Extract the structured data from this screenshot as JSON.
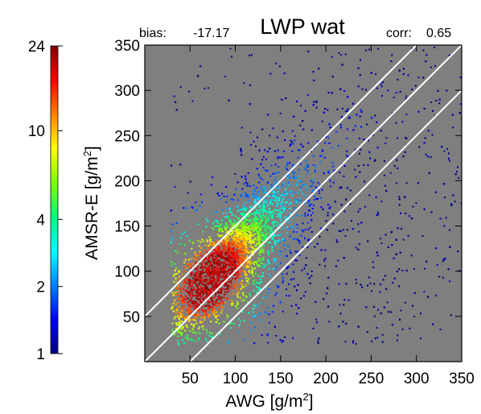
{
  "chart_data": {
    "type": "heatmap",
    "title": "LWP wat",
    "stats": {
      "bias_label": "bias:",
      "bias_value": "-17.17",
      "corr_label": "corr:",
      "corr_value": "0.65"
    },
    "xlabel": {
      "base": "AWG [g/m",
      "sup": "2",
      "end": "]"
    },
    "ylabel": {
      "base": "AMSR-E [g/m",
      "sup": "2",
      "end": "]"
    },
    "xlim": [
      0,
      350
    ],
    "ylim": [
      0,
      350
    ],
    "xticks": [
      50,
      100,
      150,
      200,
      250,
      300,
      350
    ],
    "yticks": [
      50,
      100,
      150,
      200,
      250,
      300,
      350
    ],
    "background_color": "#7f7f7f",
    "reference_lines": [
      {
        "name": "upper",
        "slope": 1,
        "intercept": 50
      },
      {
        "name": "one-to-one",
        "slope": 1,
        "intercept": 0
      },
      {
        "name": "lower",
        "slope": 1,
        "intercept": -50
      }
    ],
    "density_core": {
      "x": 70,
      "y": 90
    },
    "colorbar": {
      "ticks": [
        1,
        2,
        4,
        10,
        24
      ],
      "tick_labels": [
        "1",
        "2",
        "4",
        "10",
        "24"
      ],
      "scale": "log",
      "colors": [
        "#00007f",
        "#0000ff",
        "#0080ff",
        "#00ffff",
        "#00ff80",
        "#80ff00",
        "#ffff00",
        "#ff8000",
        "#ff0000",
        "#7f0000"
      ]
    }
  }
}
